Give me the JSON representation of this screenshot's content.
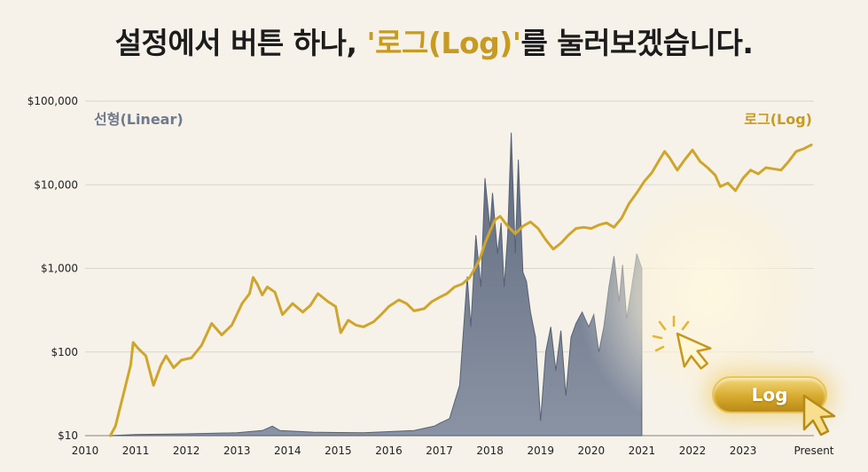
{
  "headline": {
    "before": "설정에서 버튼 하나, ",
    "accent": "'로그(Log)'",
    "after": "를 눌러보겠습니다."
  },
  "button": {
    "label": "Log"
  },
  "colors": {
    "log": "#cfa52b",
    "linear": "#6f7a8c",
    "accent": "#c79a22"
  },
  "icons": [
    "cursor-arrow-icon",
    "click-sparkle-icon",
    "hand-pointer-icon"
  ],
  "chart_data": {
    "type": "line",
    "yscale": "log",
    "ylim": [
      10,
      100000
    ],
    "xlim": [
      2010,
      2024.4
    ],
    "y_ticks": [
      {
        "value": 100000,
        "label": "$100,000"
      },
      {
        "value": 10000,
        "label": "$10,000"
      },
      {
        "value": 1000,
        "label": "$1,000"
      },
      {
        "value": 100,
        "label": "$100"
      },
      {
        "value": 10,
        "label": "$10"
      }
    ],
    "x_ticks": [
      {
        "value": 2010,
        "label": "2010"
      },
      {
        "value": 2011,
        "label": "2011"
      },
      {
        "value": 2012,
        "label": "2012"
      },
      {
        "value": 2013,
        "label": "2013"
      },
      {
        "value": 2014,
        "label": "2014"
      },
      {
        "value": 2015,
        "label": "2015"
      },
      {
        "value": 2016,
        "label": "2016"
      },
      {
        "value": 2017,
        "label": "2017"
      },
      {
        "value": 2018,
        "label": "2018"
      },
      {
        "value": 2019,
        "label": "2019"
      },
      {
        "value": 2020,
        "label": "2020"
      },
      {
        "value": 2021,
        "label": "2021"
      },
      {
        "value": 2022,
        "label": "2022"
      },
      {
        "value": 2023,
        "label": "2023"
      },
      {
        "value": 2024.4,
        "label": "Present"
      }
    ],
    "grid": true,
    "series": [
      {
        "name": "로그(Log)",
        "style": "line",
        "points": [
          [
            2010.5,
            10
          ],
          [
            2010.6,
            13
          ],
          [
            2010.75,
            30
          ],
          [
            2010.9,
            70
          ],
          [
            2010.95,
            130
          ],
          [
            2011.05,
            110
          ],
          [
            2011.2,
            90
          ],
          [
            2011.35,
            40
          ],
          [
            2011.5,
            70
          ],
          [
            2011.6,
            90
          ],
          [
            2011.75,
            65
          ],
          [
            2011.9,
            80
          ],
          [
            2012.1,
            85
          ],
          [
            2012.3,
            120
          ],
          [
            2012.5,
            220
          ],
          [
            2012.7,
            160
          ],
          [
            2012.9,
            210
          ],
          [
            2013.1,
            380
          ],
          [
            2013.25,
            500
          ],
          [
            2013.32,
            780
          ],
          [
            2013.4,
            650
          ],
          [
            2013.5,
            480
          ],
          [
            2013.6,
            600
          ],
          [
            2013.75,
            520
          ],
          [
            2013.9,
            280
          ],
          [
            2014.1,
            380
          ],
          [
            2014.3,
            300
          ],
          [
            2014.45,
            360
          ],
          [
            2014.6,
            500
          ],
          [
            2014.8,
            400
          ],
          [
            2014.95,
            350
          ],
          [
            2015.05,
            170
          ],
          [
            2015.2,
            240
          ],
          [
            2015.35,
            210
          ],
          [
            2015.5,
            200
          ],
          [
            2015.7,
            230
          ],
          [
            2015.85,
            280
          ],
          [
            2016.0,
            350
          ],
          [
            2016.2,
            420
          ],
          [
            2016.35,
            380
          ],
          [
            2016.5,
            310
          ],
          [
            2016.7,
            330
          ],
          [
            2016.85,
            400
          ],
          [
            2017.0,
            450
          ],
          [
            2017.15,
            500
          ],
          [
            2017.3,
            600
          ],
          [
            2017.45,
            650
          ],
          [
            2017.6,
            780
          ],
          [
            2017.7,
            1000
          ],
          [
            2017.8,
            1300
          ],
          [
            2017.9,
            2000
          ],
          [
            2018.0,
            2800
          ],
          [
            2018.1,
            3800
          ],
          [
            2018.2,
            4200
          ],
          [
            2018.35,
            3200
          ],
          [
            2018.5,
            2600
          ],
          [
            2018.65,
            3200
          ],
          [
            2018.8,
            3600
          ],
          [
            2018.95,
            3000
          ],
          [
            2019.1,
            2200
          ],
          [
            2019.25,
            1700
          ],
          [
            2019.4,
            2000
          ],
          [
            2019.55,
            2500
          ],
          [
            2019.7,
            3000
          ],
          [
            2019.85,
            3100
          ],
          [
            2020.0,
            3000
          ],
          [
            2020.15,
            3300
          ],
          [
            2020.3,
            3500
          ],
          [
            2020.45,
            3100
          ],
          [
            2020.6,
            4000
          ],
          [
            2020.75,
            6000
          ],
          [
            2020.9,
            8000
          ],
          [
            2021.05,
            11000
          ],
          [
            2021.2,
            14000
          ],
          [
            2021.35,
            20000
          ],
          [
            2021.45,
            25000
          ],
          [
            2021.55,
            21000
          ],
          [
            2021.7,
            15000
          ],
          [
            2021.85,
            20000
          ],
          [
            2022.0,
            26000
          ],
          [
            2022.15,
            19000
          ],
          [
            2022.3,
            16000
          ],
          [
            2022.45,
            13000
          ],
          [
            2022.55,
            9500
          ],
          [
            2022.7,
            10500
          ],
          [
            2022.85,
            8500
          ],
          [
            2023.0,
            12000
          ],
          [
            2023.15,
            15000
          ],
          [
            2023.3,
            13500
          ],
          [
            2023.45,
            16000
          ],
          [
            2023.6,
            15500
          ],
          [
            2023.75,
            15000
          ],
          [
            2023.9,
            19000
          ],
          [
            2024.05,
            25000
          ],
          [
            2024.2,
            27000
          ],
          [
            2024.35,
            30000
          ]
        ]
      },
      {
        "name": "선형(Linear)",
        "style": "area",
        "points": [
          [
            2010.5,
            10
          ],
          [
            2011.0,
            10.3
          ],
          [
            2012.0,
            10.5
          ],
          [
            2013.0,
            10.8
          ],
          [
            2013.5,
            11.5
          ],
          [
            2013.7,
            13
          ],
          [
            2013.85,
            11.5
          ],
          [
            2014.5,
            11
          ],
          [
            2015.5,
            10.8
          ],
          [
            2016.5,
            11.5
          ],
          [
            2016.9,
            13
          ],
          [
            2017.0,
            14
          ],
          [
            2017.2,
            16
          ],
          [
            2017.4,
            40
          ],
          [
            2017.55,
            800
          ],
          [
            2017.62,
            200
          ],
          [
            2017.72,
            2500
          ],
          [
            2017.82,
            600
          ],
          [
            2017.9,
            12000
          ],
          [
            2018.0,
            3000
          ],
          [
            2018.05,
            8000
          ],
          [
            2018.15,
            1500
          ],
          [
            2018.22,
            3500
          ],
          [
            2018.28,
            600
          ],
          [
            2018.35,
            2500
          ],
          [
            2018.42,
            42000
          ],
          [
            2018.5,
            1500
          ],
          [
            2018.56,
            20000
          ],
          [
            2018.65,
            900
          ],
          [
            2018.72,
            700
          ],
          [
            2018.8,
            300
          ],
          [
            2018.9,
            150
          ],
          [
            2019.0,
            15
          ],
          [
            2019.1,
            100
          ],
          [
            2019.2,
            200
          ],
          [
            2019.3,
            60
          ],
          [
            2019.4,
            180
          ],
          [
            2019.5,
            30
          ],
          [
            2019.6,
            150
          ],
          [
            2019.7,
            220
          ],
          [
            2019.82,
            300
          ],
          [
            2019.95,
            200
          ],
          [
            2020.05,
            280
          ],
          [
            2020.15,
            100
          ],
          [
            2020.25,
            200
          ],
          [
            2020.35,
            600
          ],
          [
            2020.45,
            1400
          ],
          [
            2020.55,
            400
          ],
          [
            2020.62,
            1100
          ],
          [
            2020.7,
            250
          ],
          [
            2020.8,
            600
          ],
          [
            2020.9,
            1500
          ],
          [
            2021.0,
            1000
          ]
        ]
      }
    ]
  }
}
